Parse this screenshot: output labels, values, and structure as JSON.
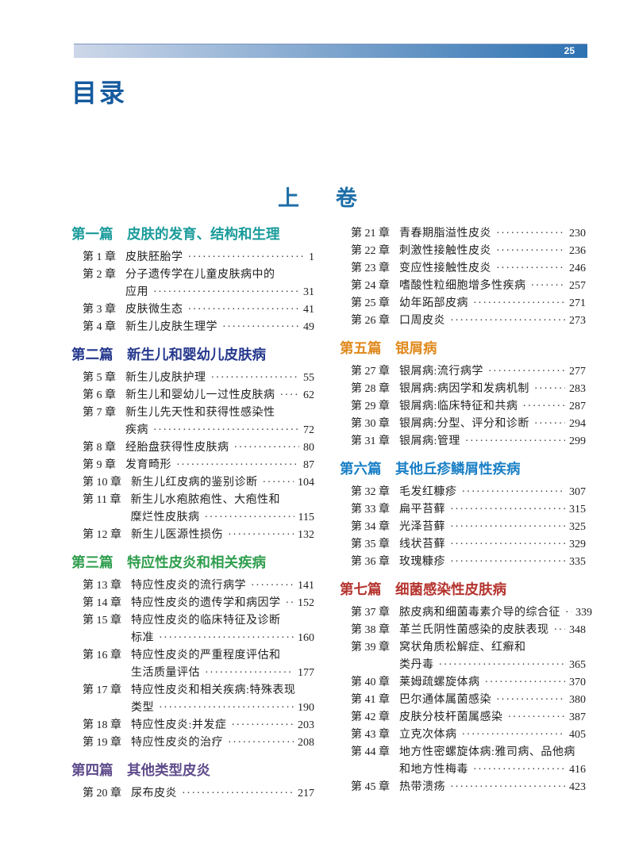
{
  "page": {
    "number": "25"
  },
  "toc": {
    "title": "目录",
    "volume": "上卷"
  },
  "colors": {
    "header_bar_start": "#cdd7e9",
    "header_bar_end": "#2e72b2",
    "title_blue": "#155a9e",
    "volume_blue": "#1e6fa8"
  },
  "columns": {
    "left": [
      {
        "label": "第一篇",
        "title": "皮肤的发育、结构和生理",
        "color": "#1b9b9b",
        "chapters": [
          {
            "num": "第 1 章",
            "lines": [
              "皮肤胚胎学"
            ],
            "page": "1"
          },
          {
            "num": "第 2 章",
            "lines": [
              "分子遗传学在儿童皮肤病中的",
              "应用"
            ],
            "page": "31"
          },
          {
            "num": "第 3 章",
            "lines": [
              "皮肤微生态"
            ],
            "page": "41"
          },
          {
            "num": "第 4 章",
            "lines": [
              "新生儿皮肤生理学"
            ],
            "page": "49"
          }
        ]
      },
      {
        "label": "第二篇",
        "title": "新生儿和婴幼儿皮肤病",
        "color": "#25388d",
        "chapters": [
          {
            "num": "第 5 章",
            "lines": [
              "新生儿皮肤护理"
            ],
            "page": "55"
          },
          {
            "num": "第 6 章",
            "lines": [
              "新生儿和婴幼儿一过性皮肤病"
            ],
            "page": "62"
          },
          {
            "num": "第 7 章",
            "lines": [
              "新生儿先天性和获得性感染性",
              "疾病"
            ],
            "page": "72"
          },
          {
            "num": "第 8 章",
            "lines": [
              "经胎盘获得性皮肤病"
            ],
            "page": "80"
          },
          {
            "num": "第 9 章",
            "lines": [
              "发育畸形"
            ],
            "page": "87"
          },
          {
            "num": "第 10 章",
            "lines": [
              "新生儿红皮病的鉴别诊断"
            ],
            "page": "104"
          },
          {
            "num": "第 11 章",
            "lines": [
              "新生儿水疱脓疱性、大疱性和",
              "糜烂性皮肤病"
            ],
            "page": "115"
          },
          {
            "num": "第 12 章",
            "lines": [
              "新生儿医源性损伤"
            ],
            "page": "132"
          }
        ]
      },
      {
        "label": "第三篇",
        "title": "特应性皮炎和相关疾病",
        "color": "#2f9e4e",
        "chapters": [
          {
            "num": "第 13 章",
            "lines": [
              "特应性皮炎的流行病学"
            ],
            "page": "141"
          },
          {
            "num": "第 14 章",
            "lines": [
              "特应性皮炎的遗传学和病因学"
            ],
            "page": "152"
          },
          {
            "num": "第 15 章",
            "lines": [
              "特应性皮炎的临床特征及诊断",
              "标准"
            ],
            "page": "160"
          },
          {
            "num": "第 16 章",
            "lines": [
              "特应性皮炎的严重程度评估和",
              "生活质量评估"
            ],
            "page": "177"
          },
          {
            "num": "第 17 章",
            "lines": [
              "特应性皮炎和相关疾病:特殊表现",
              "类型"
            ],
            "page": "190"
          },
          {
            "num": "第 18 章",
            "lines": [
              "特应性皮炎:并发症"
            ],
            "page": "203"
          },
          {
            "num": "第 19 章",
            "lines": [
              "特应性皮炎的治疗"
            ],
            "page": "208"
          }
        ]
      },
      {
        "label": "第四篇",
        "title": "其他类型皮炎",
        "color": "#5e4b8b",
        "chapters": [
          {
            "num": "第 20 章",
            "lines": [
              "尿布皮炎"
            ],
            "page": "217"
          }
        ]
      }
    ],
    "right": [
      {
        "label": "",
        "title": "",
        "color": "",
        "chapters": [
          {
            "num": "第 21 章",
            "lines": [
              "青春期脂溢性皮炎"
            ],
            "page": "230"
          },
          {
            "num": "第 22 章",
            "lines": [
              "刺激性接触性皮炎"
            ],
            "page": "236"
          },
          {
            "num": "第 23 章",
            "lines": [
              "变应性接触性皮炎"
            ],
            "page": "246"
          },
          {
            "num": "第 24 章",
            "lines": [
              "嗜酸性粒细胞增多性疾病"
            ],
            "page": "257"
          },
          {
            "num": "第 25 章",
            "lines": [
              "幼年跖部皮病"
            ],
            "page": "271"
          },
          {
            "num": "第 26 章",
            "lines": [
              "口周皮炎"
            ],
            "page": "273"
          }
        ]
      },
      {
        "label": "第五篇",
        "title": "银屑病",
        "color": "#e0891c",
        "chapters": [
          {
            "num": "第 27 章",
            "lines": [
              "银屑病:流行病学"
            ],
            "page": "277"
          },
          {
            "num": "第 28 章",
            "lines": [
              "银屑病:病因学和发病机制"
            ],
            "page": "283"
          },
          {
            "num": "第 29 章",
            "lines": [
              "银屑病:临床特征和共病"
            ],
            "page": "287"
          },
          {
            "num": "第 30 章",
            "lines": [
              "银屑病:分型、评分和诊断"
            ],
            "page": "294"
          },
          {
            "num": "第 31 章",
            "lines": [
              "银屑病:管理"
            ],
            "page": "299"
          }
        ]
      },
      {
        "label": "第六篇",
        "title": "其他丘疹鳞屑性疾病",
        "color": "#187fc6",
        "chapters": [
          {
            "num": "第 32 章",
            "lines": [
              "毛发红糠疹"
            ],
            "page": "307"
          },
          {
            "num": "第 33 章",
            "lines": [
              "扁平苔藓"
            ],
            "page": "315"
          },
          {
            "num": "第 34 章",
            "lines": [
              "光泽苔藓"
            ],
            "page": "325"
          },
          {
            "num": "第 35 章",
            "lines": [
              "线状苔藓"
            ],
            "page": "329"
          },
          {
            "num": "第 36 章",
            "lines": [
              "玫瑰糠疹"
            ],
            "page": "335"
          }
        ]
      },
      {
        "label": "第七篇",
        "title": "细菌感染性皮肤病",
        "color": "#b5332e",
        "chapters": [
          {
            "num": "第 37 章",
            "lines": [
              "脓皮病和细菌毒素介导的综合征"
            ],
            "page": "339"
          },
          {
            "num": "第 38 章",
            "lines": [
              "革兰氏阴性菌感染的皮肤表现"
            ],
            "page": "348"
          },
          {
            "num": "第 39 章",
            "lines": [
              "窝状角质松解症、红癣和",
              "类丹毒"
            ],
            "page": "365"
          },
          {
            "num": "第 40 章",
            "lines": [
              "莱姆疏螺旋体病"
            ],
            "page": "370"
          },
          {
            "num": "第 41 章",
            "lines": [
              "巴尔通体属菌感染"
            ],
            "page": "380"
          },
          {
            "num": "第 42 章",
            "lines": [
              "皮肤分枝杆菌属感染"
            ],
            "page": "387"
          },
          {
            "num": "第 43 章",
            "lines": [
              "立克次体病"
            ],
            "page": "405"
          },
          {
            "num": "第 44 章",
            "lines": [
              "地方性密螺旋体病:雅司病、品他病",
              "和地方性梅毒"
            ],
            "page": "416"
          },
          {
            "num": "第 45 章",
            "lines": [
              "热带溃疡"
            ],
            "page": "423"
          }
        ]
      }
    ]
  }
}
